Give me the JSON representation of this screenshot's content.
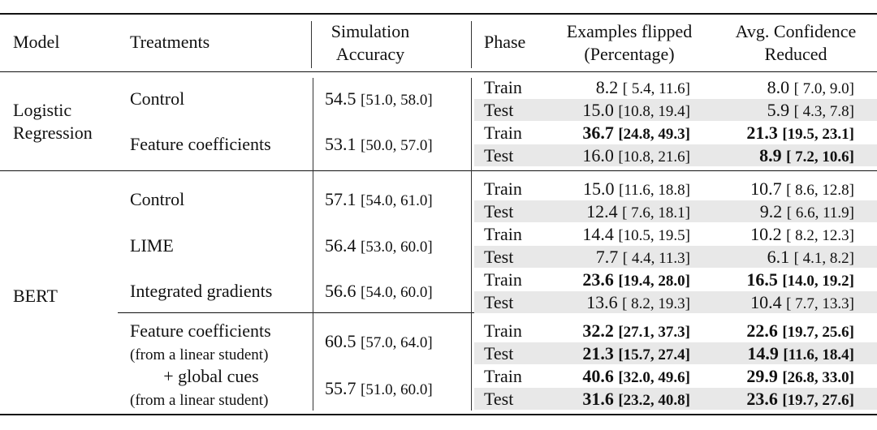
{
  "header": {
    "model": "Model",
    "treatments": "Treatments",
    "sim_acc_line1": "Simulation",
    "sim_acc_line2": "Accuracy",
    "phase": "Phase",
    "flipped_line1": "Examples flipped",
    "flipped_line2": "(Percentage)",
    "conf_line1": "Avg. Confidence",
    "conf_line2": "Reduced"
  },
  "groups": {
    "lr": {
      "line1": "Logistic",
      "line2": "Regression"
    },
    "bert": {
      "label": "BERT"
    }
  },
  "treatments": {
    "lr_control": {
      "label": "Control",
      "acc": "54.5",
      "acc_ci": "[51.0, 58.0]"
    },
    "lr_feat": {
      "label": "Feature coefficients",
      "acc": "53.1",
      "acc_ci": "[50.0, 57.0]"
    },
    "bert_control": {
      "label": "Control",
      "acc": "57.1",
      "acc_ci": "[54.0, 61.0]"
    },
    "bert_lime": {
      "label": "LIME",
      "acc": "56.4",
      "acc_ci": "[53.0, 60.0]"
    },
    "bert_ig": {
      "label": "Integrated gradients",
      "acc": "56.6",
      "acc_ci": "[54.0, 60.0]"
    },
    "bert_feat": {
      "label": "Feature coefficients",
      "sub": "(from a linear student)",
      "acc": "60.5",
      "acc_ci": "[57.0, 64.0]"
    },
    "bert_global": {
      "label": "+ global cues",
      "sub": "(from a linear student)",
      "acc": "55.7",
      "acc_ci": "[51.0, 60.0]"
    }
  },
  "rows": [
    {
      "phase": "Train",
      "flip": "8.2",
      "flip_ci": "[ 5.4, 11.6]",
      "conf": "8.0",
      "conf_ci": "[ 7.0, 9.0]"
    },
    {
      "phase": "Test",
      "flip": "15.0",
      "flip_ci": "[10.8, 19.4]",
      "conf": "5.9",
      "conf_ci": "[ 4.3, 7.8]"
    },
    {
      "phase": "Train",
      "flip": "36.7",
      "flip_ci": "[24.8, 49.3]",
      "conf": "21.3",
      "conf_ci": "[19.5, 23.1]"
    },
    {
      "phase": "Test",
      "flip": "16.0",
      "flip_ci": "[10.8, 21.6]",
      "conf": "8.9",
      "conf_ci": "[ 7.2, 10.6]"
    },
    {
      "phase": "Train",
      "flip": "15.0",
      "flip_ci": "[11.6, 18.8]",
      "conf": "10.7",
      "conf_ci": "[ 8.6, 12.8]"
    },
    {
      "phase": "Test",
      "flip": "12.4",
      "flip_ci": "[ 7.6, 18.1]",
      "conf": "9.2",
      "conf_ci": "[ 6.6, 11.9]"
    },
    {
      "phase": "Train",
      "flip": "14.4",
      "flip_ci": "[10.5, 19.5]",
      "conf": "10.2",
      "conf_ci": "[ 8.2, 12.3]"
    },
    {
      "phase": "Test",
      "flip": "7.7",
      "flip_ci": "[ 4.4, 11.3]",
      "conf": "6.1",
      "conf_ci": "[ 4.1, 8.2]"
    },
    {
      "phase": "Train",
      "flip": "23.6",
      "flip_ci": "[19.4, 28.0]",
      "conf": "16.5",
      "conf_ci": "[14.0, 19.2]"
    },
    {
      "phase": "Test",
      "flip": "13.6",
      "flip_ci": "[ 8.2, 19.3]",
      "conf": "10.4",
      "conf_ci": "[ 7.7, 13.3]"
    },
    {
      "phase": "Train",
      "flip": "32.2",
      "flip_ci": "[27.1, 37.3]",
      "conf": "22.6",
      "conf_ci": "[19.7, 25.6]"
    },
    {
      "phase": "Test",
      "flip": "21.3",
      "flip_ci": "[15.7, 27.4]",
      "conf": "14.9",
      "conf_ci": "[11.6, 18.4]"
    },
    {
      "phase": "Train",
      "flip": "40.6",
      "flip_ci": "[32.0, 49.6]",
      "conf": "29.9",
      "conf_ci": "[26.8, 33.0]"
    },
    {
      "phase": "Test",
      "flip": "31.6",
      "flip_ci": "[23.2, 40.8]",
      "conf": "23.6",
      "conf_ci": "[19.7, 27.6]"
    }
  ]
}
